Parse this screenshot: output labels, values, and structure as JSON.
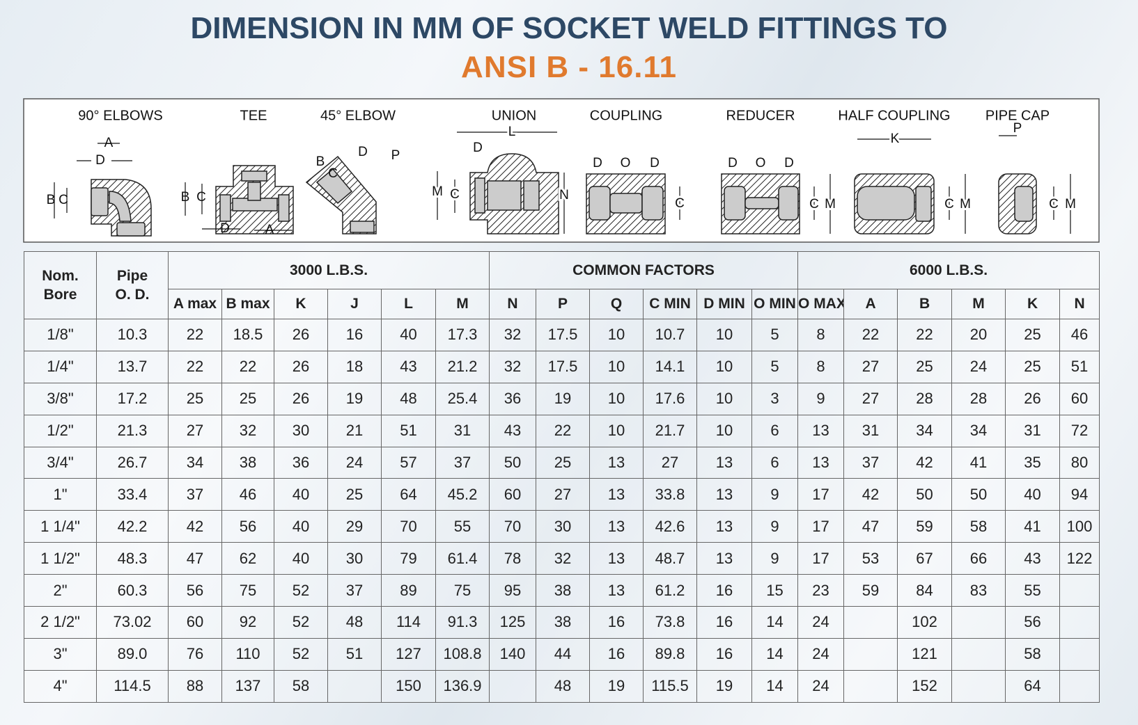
{
  "header": {
    "title": "DIMENSION IN MM OF SOCKET WELD FITTINGS TO",
    "subtitle": "ANSI B - 16.11"
  },
  "diagrams": [
    {
      "name": "90° ELBOWS",
      "labels": [
        "A",
        "D",
        "B",
        "C"
      ]
    },
    {
      "name": "TEE",
      "labels": [
        "B",
        "C",
        "D",
        "A"
      ]
    },
    {
      "name": "45° ELBOW",
      "labels": [
        "B",
        "C",
        "D",
        "P"
      ]
    },
    {
      "name": "UNION",
      "labels": [
        "L",
        "D",
        "M",
        "C",
        "N"
      ]
    },
    {
      "name": "COUPLING",
      "labels": [
        "D",
        "O",
        "D",
        "C"
      ]
    },
    {
      "name": "REDUCER",
      "labels": [
        "D",
        "O",
        "D",
        "C",
        "M"
      ]
    },
    {
      "name": "HALF COUPLING",
      "labels": [
        "K",
        "C",
        "M"
      ]
    },
    {
      "name": "PIPE CAP",
      "labels": [
        "P",
        "C",
        "M"
      ]
    }
  ],
  "table": {
    "groups": [
      "3000 L.B.S.",
      "COMMON FACTORS",
      "6000 L.B.S."
    ],
    "columns": [
      "Nom.\nBore",
      "Pipe\nO. D.",
      "A max",
      "B max",
      "K",
      "J",
      "L",
      "M",
      "N",
      "P",
      "Q",
      "C MIN",
      "D MIN",
      "O MIN",
      "O MAX",
      "A",
      "B",
      "M",
      "K",
      "N"
    ],
    "rows": [
      [
        "1/8\"",
        "10.3",
        "22",
        "18.5",
        "26",
        "16",
        "40",
        "17.3",
        "32",
        "17.5",
        "10",
        "10.7",
        "10",
        "5",
        "8",
        "22",
        "22",
        "20",
        "25",
        "46"
      ],
      [
        "1/4\"",
        "13.7",
        "22",
        "22",
        "26",
        "18",
        "43",
        "21.2",
        "32",
        "17.5",
        "10",
        "14.1",
        "10",
        "5",
        "8",
        "27",
        "25",
        "24",
        "25",
        "51"
      ],
      [
        "3/8\"",
        "17.2",
        "25",
        "25",
        "26",
        "19",
        "48",
        "25.4",
        "36",
        "19",
        "10",
        "17.6",
        "10",
        "3",
        "9",
        "27",
        "28",
        "28",
        "26",
        "60"
      ],
      [
        "1/2\"",
        "21.3",
        "27",
        "32",
        "30",
        "21",
        "51",
        "31",
        "43",
        "22",
        "10",
        "21.7",
        "10",
        "6",
        "13",
        "31",
        "34",
        "34",
        "31",
        "72"
      ],
      [
        "3/4\"",
        "26.7",
        "34",
        "38",
        "36",
        "24",
        "57",
        "37",
        "50",
        "25",
        "13",
        "27",
        "13",
        "6",
        "13",
        "37",
        "42",
        "41",
        "35",
        "80"
      ],
      [
        "1\"",
        "33.4",
        "37",
        "46",
        "40",
        "25",
        "64",
        "45.2",
        "60",
        "27",
        "13",
        "33.8",
        "13",
        "9",
        "17",
        "42",
        "50",
        "50",
        "40",
        "94"
      ],
      [
        "1 1/4\"",
        "42.2",
        "42",
        "56",
        "40",
        "29",
        "70",
        "55",
        "70",
        "30",
        "13",
        "42.6",
        "13",
        "9",
        "17",
        "47",
        "59",
        "58",
        "41",
        "100"
      ],
      [
        "1 1/2\"",
        "48.3",
        "47",
        "62",
        "40",
        "30",
        "79",
        "61.4",
        "78",
        "32",
        "13",
        "48.7",
        "13",
        "9",
        "17",
        "53",
        "67",
        "66",
        "43",
        "122"
      ],
      [
        "2\"",
        "60.3",
        "56",
        "75",
        "52",
        "37",
        "89",
        "75",
        "95",
        "38",
        "13",
        "61.2",
        "16",
        "15",
        "23",
        "59",
        "84",
        "83",
        "55",
        null
      ],
      [
        "2 1/2\"",
        "73.02",
        "60",
        "92",
        "52",
        "48",
        "114",
        "91.3",
        "125",
        "38",
        "16",
        "73.8",
        "16",
        "14",
        "24",
        null,
        "102",
        null,
        "56",
        null
      ],
      [
        "3\"",
        "89.0",
        "76",
        "110",
        "52",
        "51",
        "127",
        "108.8",
        "140",
        "44",
        "16",
        "89.8",
        "16",
        "14",
        "24",
        null,
        "121",
        null,
        "58",
        null
      ],
      [
        "4\"",
        "114.5",
        "88",
        "137",
        "58",
        null,
        "150",
        "136.9",
        null,
        "48",
        "19",
        "115.5",
        "19",
        "14",
        "24",
        null,
        "152",
        null,
        "64",
        null
      ]
    ]
  }
}
